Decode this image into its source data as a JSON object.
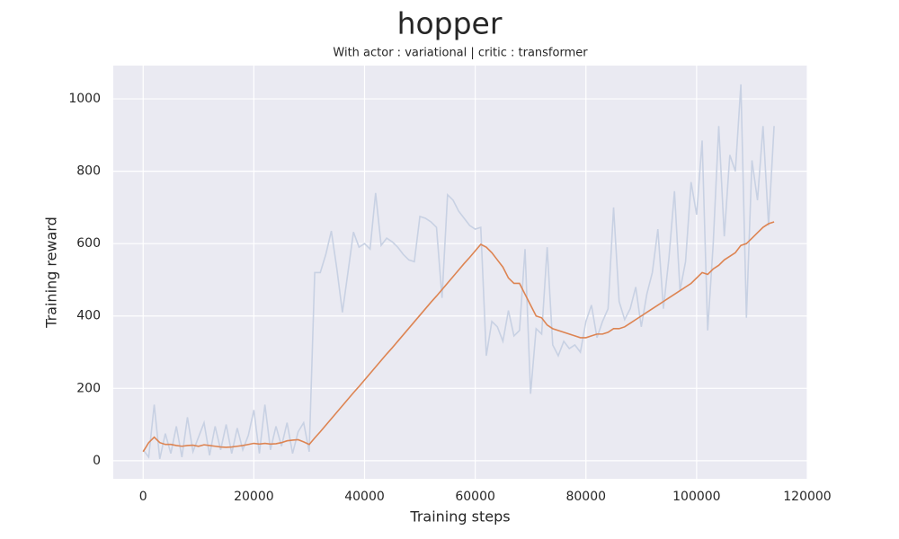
{
  "chart_data": {
    "type": "line",
    "title": "hopper",
    "subtitle": "With actor : variational | critic : transformer",
    "x_label": "Training steps",
    "y_label": "Training reward",
    "xlim": [
      -5400,
      120000
    ],
    "ylim": [
      -50,
      1092
    ],
    "xticks": [
      0,
      20000,
      40000,
      60000,
      80000,
      100000,
      120000
    ],
    "yticks": [
      0,
      200,
      400,
      600,
      800,
      1000
    ],
    "grid": true,
    "background": "#eaeaf2",
    "x": [
      0,
      1000,
      2000,
      3000,
      4000,
      5000,
      6000,
      7000,
      8000,
      9000,
      10000,
      11000,
      12000,
      13000,
      14000,
      15000,
      16000,
      17000,
      18000,
      19000,
      20000,
      21000,
      22000,
      23000,
      24000,
      25000,
      26000,
      27000,
      28000,
      29000,
      30000,
      31000,
      32000,
      33000,
      34000,
      35000,
      36000,
      37000,
      38000,
      39000,
      40000,
      41000,
      42000,
      43000,
      44000,
      45000,
      46000,
      47000,
      48000,
      49000,
      50000,
      51000,
      52000,
      53000,
      54000,
      55000,
      56000,
      57000,
      58000,
      59000,
      60000,
      61000,
      62000,
      63000,
      64000,
      65000,
      66000,
      67000,
      68000,
      69000,
      70000,
      71000,
      72000,
      73000,
      74000,
      75000,
      76000,
      77000,
      78000,
      79000,
      80000,
      81000,
      82000,
      83000,
      84000,
      85000,
      86000,
      87000,
      88000,
      89000,
      90000,
      91000,
      92000,
      93000,
      94000,
      95000,
      96000,
      97000,
      98000,
      99000,
      100000,
      101000,
      102000,
      103000,
      104000,
      105000,
      106000,
      107000,
      108000,
      109000,
      110000,
      111000,
      112000,
      113000,
      114000
    ],
    "series": [
      {
        "color": "#c8d1e3",
        "values": [
          30,
          10,
          155,
          5,
          75,
          20,
          95,
          10,
          120,
          25,
          65,
          105,
          15,
          95,
          30,
          100,
          20,
          90,
          30,
          70,
          140,
          20,
          155,
          30,
          95,
          40,
          105,
          20,
          80,
          105,
          25,
          520,
          520,
          570,
          635,
          530,
          410,
          520,
          632,
          590,
          600,
          585,
          740,
          595,
          615,
          605,
          590,
          570,
          555,
          550,
          675,
          670,
          660,
          645,
          450,
          735,
          720,
          690,
          670,
          650,
          640,
          645,
          290,
          385,
          370,
          330,
          415,
          345,
          360,
          585,
          185,
          365,
          350,
          590,
          320,
          290,
          330,
          310,
          320,
          300,
          385,
          430,
          340,
          385,
          420,
          700,
          440,
          390,
          420,
          480,
          370,
          460,
          520,
          640,
          420,
          560,
          745,
          470,
          550,
          770,
          680,
          885,
          360,
          600,
          925,
          620,
          845,
          800,
          1040,
          395,
          830,
          720,
          925,
          650,
          925
        ]
      },
      {
        "color": "#dd8452",
        "values": [
          25,
          50,
          65,
          50,
          45,
          45,
          42,
          40,
          42,
          43,
          40,
          44,
          42,
          40,
          38,
          37,
          38,
          40,
          42,
          45,
          48,
          46,
          48,
          46,
          47,
          50,
          55,
          57,
          58,
          52,
          45,
          63,
          80,
          98,
          116,
          134,
          152,
          170,
          188,
          205,
          223,
          241,
          259,
          277,
          295,
          312,
          330,
          348,
          366,
          384,
          402,
          420,
          438,
          455,
          473,
          491,
          509,
          527,
          545,
          562,
          580,
          598,
          590,
          575,
          555,
          535,
          505,
          490,
          490,
          460,
          430,
          400,
          395,
          375,
          365,
          360,
          355,
          350,
          345,
          340,
          340,
          345,
          350,
          350,
          355,
          365,
          365,
          370,
          380,
          390,
          400,
          410,
          420,
          430,
          440,
          450,
          460,
          470,
          480,
          490,
          505,
          520,
          515,
          530,
          540,
          555,
          565,
          575,
          595,
          600,
          615,
          630,
          645,
          655,
          660
        ]
      }
    ]
  }
}
